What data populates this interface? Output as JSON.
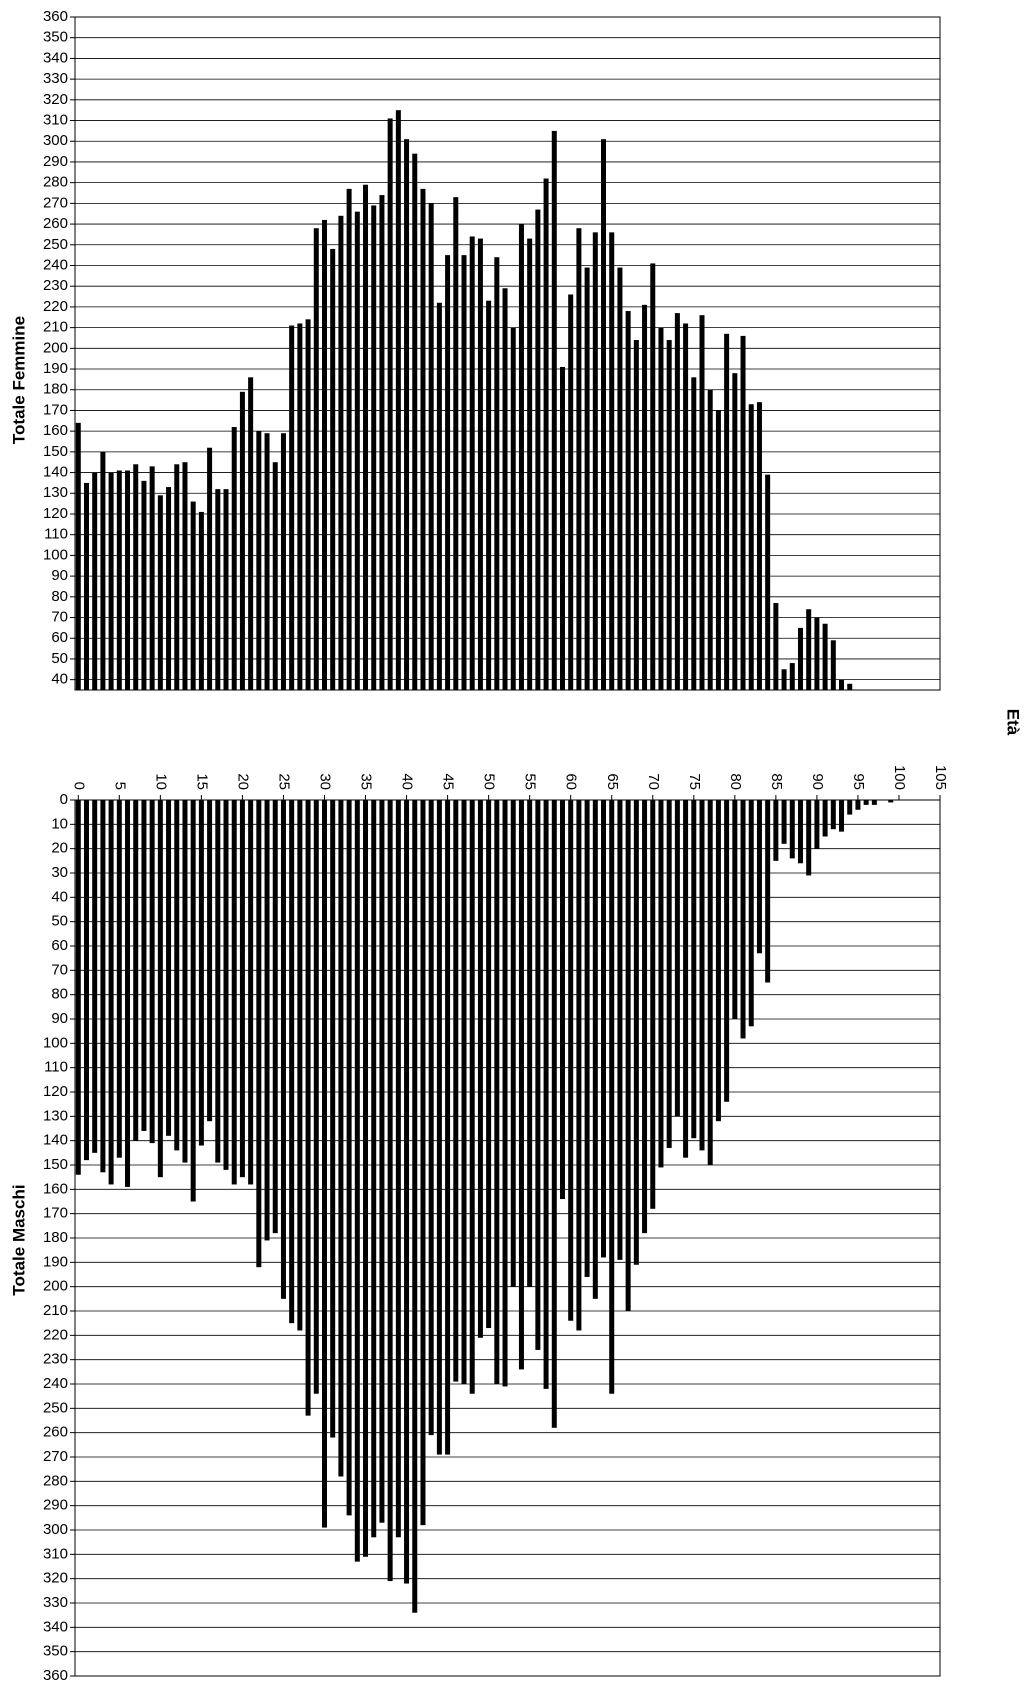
{
  "chart_data": [
    {
      "type": "bar",
      "ylabel": "Totale Femmine",
      "color": "#000000",
      "grid": true,
      "xlim": [
        -0.4,
        105
      ],
      "ylim": [
        35,
        360
      ],
      "yticks": [
        40,
        50,
        60,
        70,
        80,
        90,
        100,
        110,
        120,
        130,
        140,
        150,
        160,
        170,
        180,
        190,
        200,
        210,
        220,
        230,
        240,
        250,
        260,
        270,
        280,
        290,
        300,
        310,
        320,
        330,
        340,
        350,
        360
      ],
      "x": [
        0,
        1,
        2,
        3,
        4,
        5,
        6,
        7,
        8,
        9,
        10,
        11,
        12,
        13,
        14,
        15,
        16,
        17,
        18,
        19,
        20,
        21,
        22,
        23,
        24,
        25,
        26,
        27,
        28,
        29,
        30,
        31,
        32,
        33,
        34,
        35,
        36,
        37,
        38,
        39,
        40,
        41,
        42,
        43,
        44,
        45,
        46,
        47,
        48,
        49,
        50,
        51,
        52,
        53,
        54,
        55,
        56,
        57,
        58,
        59,
        60,
        61,
        62,
        63,
        64,
        65,
        66,
        67,
        68,
        69,
        70,
        71,
        72,
        73,
        74,
        75,
        76,
        77,
        78,
        79,
        80,
        81,
        82,
        83,
        84,
        85,
        86,
        87,
        88,
        89,
        90,
        91,
        92,
        93,
        94
      ],
      "values": [
        164,
        135,
        140,
        150,
        140,
        141,
        141,
        144,
        136,
        143,
        129,
        133,
        144,
        145,
        126,
        121,
        152,
        132,
        132,
        162,
        179,
        186,
        160,
        159,
        145,
        159,
        211,
        212,
        214,
        258,
        262,
        248,
        264,
        277,
        266,
        279,
        269,
        274,
        311,
        315,
        301,
        294,
        277,
        270,
        222,
        245,
        273,
        245,
        254,
        253,
        223,
        244,
        229,
        210,
        260,
        253,
        267,
        282,
        305,
        191,
        226,
        258,
        239,
        256,
        301,
        256,
        239,
        218,
        204,
        221,
        241,
        210,
        204,
        217,
        212,
        186,
        216,
        180,
        170,
        207,
        188,
        206,
        173,
        174,
        139,
        77,
        45,
        48,
        65,
        74,
        70,
        67,
        59,
        40,
        38
      ]
    },
    {
      "type": "bar",
      "ylabel": "Totale Maschi",
      "xlabel": "Età",
      "color": "#000000",
      "grid": true,
      "y_inverted": true,
      "xlim": [
        -0.4,
        105
      ],
      "ylim": [
        0,
        360
      ],
      "xticks": [
        0,
        5,
        10,
        15,
        20,
        25,
        30,
        35,
        40,
        45,
        50,
        55,
        60,
        65,
        70,
        75,
        80,
        85,
        90,
        95,
        100,
        105
      ],
      "yticks": [
        0,
        10,
        20,
        30,
        40,
        50,
        60,
        70,
        80,
        90,
        100,
        110,
        120,
        130,
        140,
        150,
        160,
        170,
        180,
        190,
        200,
        210,
        220,
        230,
        240,
        250,
        260,
        270,
        280,
        290,
        300,
        310,
        320,
        330,
        340,
        350,
        360
      ],
      "x": [
        0,
        1,
        2,
        3,
        4,
        5,
        6,
        7,
        8,
        9,
        10,
        11,
        12,
        13,
        14,
        15,
        16,
        17,
        18,
        19,
        20,
        21,
        22,
        23,
        24,
        25,
        26,
        27,
        28,
        29,
        30,
        31,
        32,
        33,
        34,
        35,
        36,
        37,
        38,
        39,
        40,
        41,
        42,
        43,
        44,
        45,
        46,
        47,
        48,
        49,
        50,
        51,
        52,
        53,
        54,
        55,
        56,
        57,
        58,
        59,
        60,
        61,
        62,
        63,
        64,
        65,
        66,
        67,
        68,
        69,
        70,
        71,
        72,
        73,
        74,
        75,
        76,
        77,
        78,
        79,
        80,
        81,
        82,
        83,
        84,
        85,
        86,
        87,
        88,
        89,
        90,
        91,
        92,
        93,
        94,
        95,
        96,
        97,
        98,
        99
      ],
      "values": [
        154,
        148,
        145,
        153,
        158,
        147,
        159,
        140,
        136,
        141,
        155,
        138,
        144,
        149,
        165,
        142,
        132,
        149,
        152,
        158,
        155,
        158,
        192,
        181,
        178,
        205,
        215,
        218,
        253,
        244,
        299,
        262,
        278,
        294,
        313,
        311,
        303,
        297,
        321,
        303,
        322,
        334,
        298,
        261,
        269,
        269,
        239,
        240,
        244,
        221,
        217,
        240,
        241,
        200,
        234,
        200,
        226,
        242,
        258,
        164,
        214,
        218,
        196,
        205,
        188,
        244,
        189,
        210,
        191,
        178,
        168,
        151,
        143,
        130,
        147,
        139,
        144,
        150,
        132,
        124,
        90,
        98,
        93,
        63,
        75,
        25,
        18,
        24,
        26,
        31,
        20,
        15,
        12,
        13,
        6,
        4,
        2,
        2,
        0,
        1
      ]
    }
  ]
}
